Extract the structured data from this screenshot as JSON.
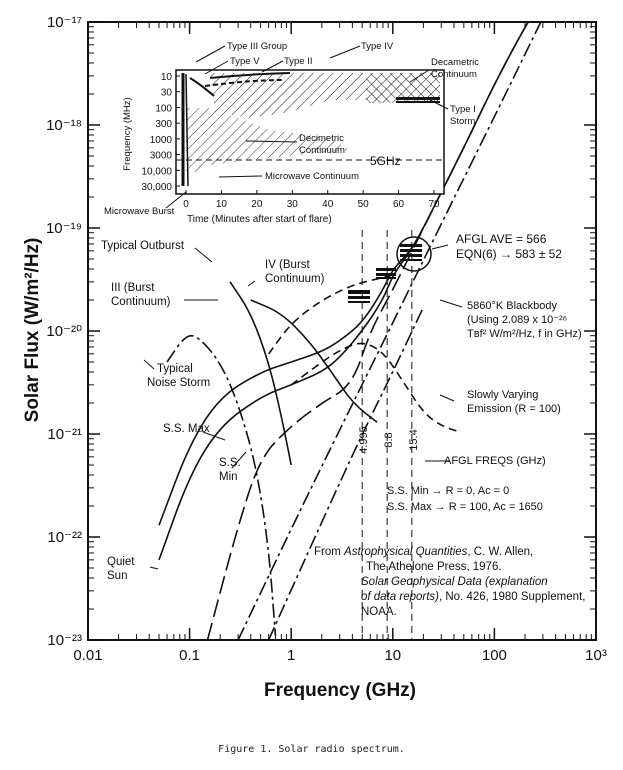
{
  "chart_data": {
    "type": "line",
    "xlabel": "Frequency (GHz)",
    "ylabel": "Solar Flux (W/m²/Hz)",
    "xscale": "log",
    "yscale": "log",
    "xlim": [
      0.01,
      1000
    ],
    "ylim": [
      1e-23,
      1e-17
    ],
    "x_ticks": [
      {
        "v": 0.01,
        "label": "0.01"
      },
      {
        "v": 0.1,
        "label": "0.1"
      },
      {
        "v": 1,
        "label": "1"
      },
      {
        "v": 10,
        "label": "10"
      },
      {
        "v": 100,
        "label": "100"
      },
      {
        "v": 1000,
        "label": "10³"
      }
    ],
    "y_ticks": [
      {
        "v": 1e-17,
        "label": "10⁻¹⁷"
      },
      {
        "v": 1e-18,
        "label": "10⁻¹⁸"
      },
      {
        "v": 1e-19,
        "label": "10⁻¹⁹"
      },
      {
        "v": 1e-20,
        "label": "10⁻²⁰"
      },
      {
        "v": 1e-21,
        "label": "10⁻²¹"
      },
      {
        "v": 1e-22,
        "label": "10⁻²²"
      },
      {
        "v": 1e-23,
        "label": "10⁻²³"
      }
    ],
    "series": [
      {
        "name": "Typical Outburst",
        "dash": "solid",
        "points": [
          [
            0.4,
            2e-20
          ],
          [
            0.8,
            1.5e-20
          ],
          [
            1.5,
            8e-21
          ],
          [
            2.5,
            4e-21
          ],
          [
            4,
            2e-21
          ],
          [
            7,
            1.3e-21
          ]
        ]
      },
      {
        "name": "III (Burst Continuum)",
        "dash": "solid",
        "points": [
          [
            0.25,
            3e-20
          ],
          [
            0.4,
            1.5e-20
          ],
          [
            0.6,
            5e-21
          ],
          [
            0.8,
            1.5e-21
          ],
          [
            1,
            5e-22
          ]
        ]
      },
      {
        "name": "IV (Burst Continuum)",
        "dash": "dash",
        "points": [
          [
            0.6,
            6e-21
          ],
          [
            1,
            1.2e-20
          ],
          [
            2,
            2e-20
          ],
          [
            4,
            2.8e-20
          ],
          [
            7,
            3.2e-20
          ],
          [
            10,
            3.5e-20
          ]
        ]
      },
      {
        "name": "Typical Noise Storm",
        "dash": "dashdot",
        "points": [
          [
            0.06,
            5e-21
          ],
          [
            0.09,
            9e-21
          ],
          [
            0.12,
            9e-21
          ],
          [
            0.2,
            5e-21
          ],
          [
            0.3,
            2e-21
          ],
          [
            0.45,
            5e-22
          ],
          [
            0.6,
            8e-23
          ],
          [
            0.7,
            1.1e-23
          ]
        ]
      },
      {
        "name": "S.S. Max",
        "dash": "solid",
        "points": [
          [
            0.05,
            1.3e-22
          ],
          [
            0.1,
            8e-22
          ],
          [
            0.2,
            2.3e-21
          ],
          [
            0.5,
            4e-21
          ],
          [
            1,
            5e-21
          ],
          [
            2,
            6.3e-21
          ],
          [
            3,
            8e-21
          ],
          [
            5,
            1.2e-20
          ],
          [
            8,
            2.5e-20
          ],
          [
            10,
            4e-20
          ],
          [
            15,
            6e-20
          ],
          [
            20,
            1e-19
          ],
          [
            50,
            6e-19
          ],
          [
            100,
            2.5e-18
          ],
          [
            200,
            9e-18
          ],
          [
            300,
            1.7e-17
          ]
        ]
      },
      {
        "name": "S.S. Min",
        "dash": "solid",
        "points": [
          [
            0.05,
            6e-23
          ],
          [
            0.1,
            4e-22
          ],
          [
            0.2,
            1.2e-21
          ],
          [
            0.5,
            2.3e-21
          ],
          [
            1,
            3e-21
          ],
          [
            2,
            4e-21
          ],
          [
            3,
            5.5e-21
          ],
          [
            5,
            1e-20
          ],
          [
            8,
            2e-20
          ],
          [
            10,
            3.5e-20
          ],
          [
            15,
            6e-20
          ],
          [
            20,
            1e-19
          ]
        ]
      },
      {
        "name": "Quiet Sun",
        "dash": "longdash",
        "points": [
          [
            0.15,
            1e-23
          ],
          [
            0.3,
            1.3e-22
          ],
          [
            0.5,
            6e-22
          ],
          [
            1,
            1.2e-21
          ],
          [
            2,
            2e-21
          ],
          [
            4,
            3e-21
          ],
          [
            6,
            1e-20
          ],
          [
            10,
            2.5e-20
          ],
          [
            20,
            1e-19
          ],
          [
            50,
            6e-19
          ],
          [
            100,
            2.5e-18
          ],
          [
            200,
            9e-18
          ],
          [
            300,
            1.7e-17
          ]
        ]
      },
      {
        "name": "Slowly Varying Emission (R = 100)",
        "dash": "dash",
        "points": [
          [
            1,
            3e-21
          ],
          [
            2,
            5e-21
          ],
          [
            3,
            6.5e-21
          ],
          [
            5,
            8e-21
          ],
          [
            8,
            6.3e-21
          ],
          [
            12,
            3.5e-21
          ],
          [
            20,
            1.6e-21
          ],
          [
            30,
            1.2e-21
          ],
          [
            45,
            1.05e-21
          ]
        ]
      },
      {
        "name": "5860°K Blackbody",
        "dash": "dashdot",
        "points": [
          [
            0.3,
            1e-23
          ],
          [
            1,
            1.2e-22
          ],
          [
            3,
            1.1e-21
          ],
          [
            10,
            1.2e-20
          ],
          [
            30,
            1.1e-19
          ],
          [
            100,
            1.2e-18
          ],
          [
            300,
            1.1e-17
          ]
        ]
      },
      {
        "name": "",
        "dash": "dashdot",
        "points": [
          [
            0.6,
            1e-23
          ],
          [
            2,
            1.4e-22
          ],
          [
            5,
            1e-21
          ],
          [
            10,
            4e-21
          ],
          [
            20,
            1.7e-20
          ]
        ]
      }
    ],
    "afgl_freqs": [
      4.995,
      8.8,
      15.4
    ],
    "afgl_freq_labels": [
      "4.995",
      "8.8",
      "15.4"
    ],
    "annotations": {
      "typical_outburst": "Typical Outburst",
      "iii_burst": "III (Burst",
      "iii_burst2": "Continuum)",
      "iv_burst": "IV (Burst",
      "iv_burst2": "Continuum)",
      "noise_storm": "Typical",
      "noise_storm2": "Noise Storm",
      "ss_max": "S.S. Max",
      "ss_min": "S.S.",
      "ss_min2": "Min",
      "quiet_sun": "Quiet",
      "quiet_sun2": "Sun",
      "afgl_ave": "AFGL AVE = 566",
      "eqn": "EQN(6) → 583 ± 52",
      "blackbody1": "5860°K Blackbody",
      "blackbody2": "(Using 2.089 x 10⁻²⁶",
      "blackbody3": "Tʙf² W/m²/Hz, f in GHz)",
      "slowly1": "Slowly Varying",
      "slowly2": "Emission (R = 100)",
      "afgl_freqs_label": "AFGL FREQS (GHz)",
      "ssmin_note": "S.S. Min → R = 0, Aᴄ = 0",
      "ssmax_note": "S.S. Max → R = 100, Aᴄ = 1650",
      "from1_pre": "From ",
      "from1_it": "Astrophysical Quantities",
      "from1_post": ", C. W. Allen,",
      "from2": "The Athelone Press, 1976.",
      "from3": "Solar Geophysical Data (explanation",
      "from4_it": "of data reports)",
      "from4_post": ", No. 426, 1980 Supplement,",
      "from5": "NOAA."
    },
    "inset": {
      "type": "area",
      "xlabel": "Time (Minutes after start of flare)",
      "ylabel": "Frequency (MHz)",
      "xlim": [
        -5,
        75
      ],
      "x_ticks": [
        "0",
        "10",
        "20",
        "30",
        "40",
        "50",
        "60",
        "70"
      ],
      "y_ticks": [
        "10",
        "30",
        "100",
        "300",
        "1000",
        "3000",
        "10,000",
        "30,000"
      ],
      "ref_line": "5GHz",
      "labels": {
        "type3_group": "Type III Group",
        "type5": "Type V",
        "type2": "Type II",
        "type4": "Type IV",
        "decametric1": "Decametric",
        "decametric2": "Continuum",
        "type1a": "Type I",
        "type1b": "Storm",
        "decimetric1": "Decimetric",
        "decimetric2": "Continuum",
        "microwave_cont": "Microwave Continuum",
        "microwave_burst": "Microwave Burst"
      }
    }
  },
  "caption": "Figure 1.  Solar radio spectrum."
}
